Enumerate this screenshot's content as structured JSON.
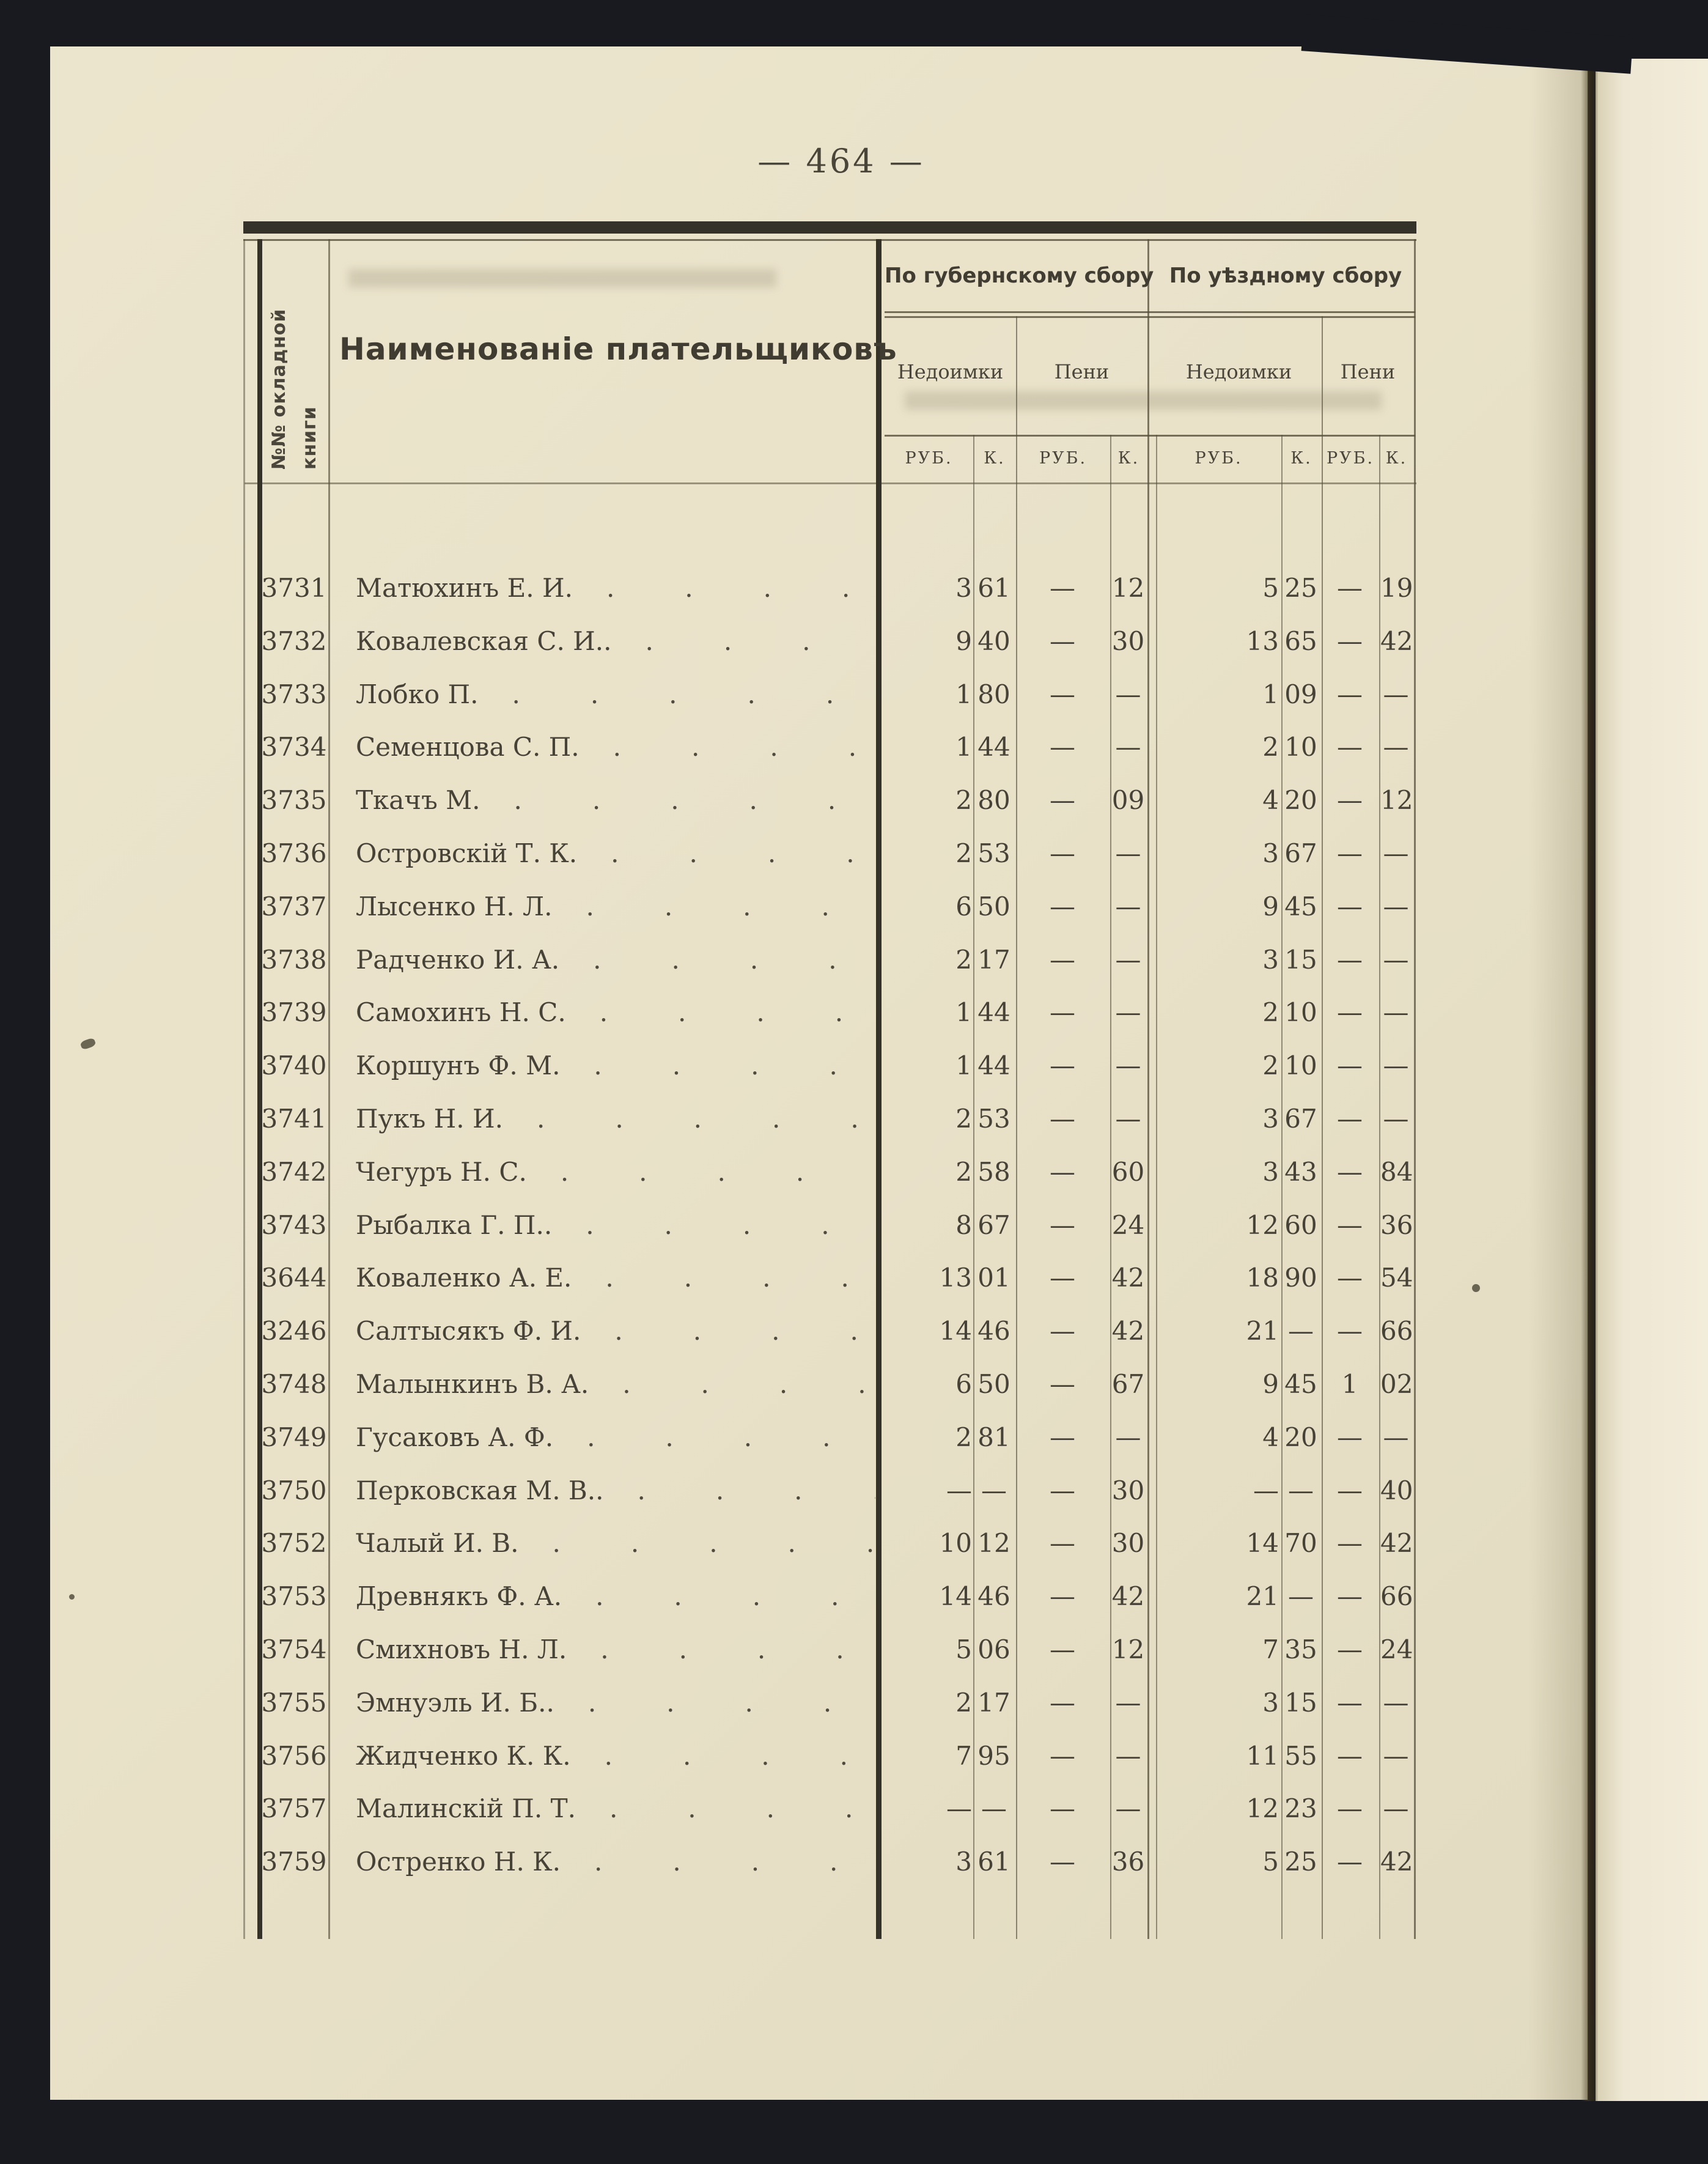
{
  "page": {
    "number": "— 464 —"
  },
  "table": {
    "headers": {
      "row_num_line1": "№№ окладной",
      "row_num_line2": "книги",
      "payer": "Наименованіе  плательщиковъ",
      "group_gub": "По губернскому сбору",
      "group_uezd": "По уѣздному сбору",
      "arrears": "Недоимки",
      "penalties": "Пени",
      "rub": "РУБ.",
      "kop": "К."
    },
    "leader_dots": "............",
    "rows": [
      {
        "num": "3731",
        "name": "Матюхинъ Е. И.",
        "values": [
          "3",
          "61",
          "—",
          "12",
          "5",
          "25",
          "—",
          "19"
        ]
      },
      {
        "num": "3732",
        "name": "Ковалевская С. И..",
        "values": [
          "9",
          "40",
          "—",
          "30",
          "13",
          "65",
          "—",
          "42"
        ]
      },
      {
        "num": "3733",
        "name": "Лобко П.",
        "values": [
          "1",
          "80",
          "—",
          "—",
          "1",
          "09",
          "—",
          "—"
        ]
      },
      {
        "num": "3734",
        "name": "Семенцова С. П.",
        "values": [
          "1",
          "44",
          "—",
          "—",
          "2",
          "10",
          "—",
          "—"
        ]
      },
      {
        "num": "3735",
        "name": "Ткачъ М.",
        "values": [
          "2",
          "80",
          "—",
          "09",
          "4",
          "20",
          "—",
          "12"
        ]
      },
      {
        "num": "3736",
        "name": "Островскій Т. К.",
        "values": [
          "2",
          "53",
          "—",
          "—",
          "3",
          "67",
          "—",
          "—"
        ]
      },
      {
        "num": "3737",
        "name": "Лысенко Н. Л.",
        "values": [
          "6",
          "50",
          "—",
          "—",
          "9",
          "45",
          "—",
          "—"
        ]
      },
      {
        "num": "3738",
        "name": "Радченко И. А.",
        "values": [
          "2",
          "17",
          "—",
          "—",
          "3",
          "15",
          "—",
          "—"
        ]
      },
      {
        "num": "3739",
        "name": "Самохинъ Н. С.",
        "values": [
          "1",
          "44",
          "—",
          "—",
          "2",
          "10",
          "—",
          "—"
        ]
      },
      {
        "num": "3740",
        "name": "Коршунъ Ф. М.",
        "values": [
          "1",
          "44",
          "—",
          "—",
          "2",
          "10",
          "—",
          "—"
        ]
      },
      {
        "num": "3741",
        "name": "Пукъ Н. И.",
        "values": [
          "2",
          "53",
          "—",
          "—",
          "3",
          "67",
          "—",
          "—"
        ]
      },
      {
        "num": "3742",
        "name": "Чегуръ Н. С.",
        "values": [
          "2",
          "58",
          "—",
          "60",
          "3",
          "43",
          "—",
          "84"
        ]
      },
      {
        "num": "3743",
        "name": "Рыбалка Г. П..",
        "values": [
          "8",
          "67",
          "—",
          "24",
          "12",
          "60",
          "—",
          "36"
        ]
      },
      {
        "num": "3644",
        "name": "Коваленко А. Е.",
        "values": [
          "13",
          "01",
          "—",
          "42",
          "18",
          "90",
          "—",
          "54"
        ]
      },
      {
        "num": "3246",
        "name": "Салтысякъ Ф. И.",
        "values": [
          "14",
          "46",
          "—",
          "42",
          "21",
          "—",
          "—",
          "66"
        ]
      },
      {
        "num": "3748",
        "name": "Малынкинъ В. А.",
        "values": [
          "6",
          "50",
          "—",
          "67",
          "9",
          "45",
          "1",
          "02"
        ]
      },
      {
        "num": "3749",
        "name": "Гусаковъ А. Ф.",
        "values": [
          "2",
          "81",
          "—",
          "—",
          "4",
          "20",
          "—",
          "—"
        ]
      },
      {
        "num": "3750",
        "name": "Перковская М. В..",
        "values": [
          "—",
          "—",
          "—",
          "30",
          "—",
          "—",
          "—",
          "40"
        ]
      },
      {
        "num": "3752",
        "name": "Чалый И. В.",
        "values": [
          "10",
          "12",
          "—",
          "30",
          "14",
          "70",
          "—",
          "42"
        ]
      },
      {
        "num": "3753",
        "name": "Древнякъ Ф. А.",
        "values": [
          "14",
          "46",
          "—",
          "42",
          "21",
          "—",
          "—",
          "66"
        ]
      },
      {
        "num": "3754",
        "name": "Смихновъ Н. Л.",
        "values": [
          "5",
          "06",
          "—",
          "12",
          "7",
          "35",
          "—",
          "24"
        ]
      },
      {
        "num": "3755",
        "name": "Эмнуэль И. Б..",
        "values": [
          "2",
          "17",
          "—",
          "—",
          "3",
          "15",
          "—",
          "—"
        ]
      },
      {
        "num": "3756",
        "name": "Жидченко К. К.",
        "values": [
          "7",
          "95",
          "—",
          "—",
          "11",
          "55",
          "—",
          "—"
        ]
      },
      {
        "num": "3757",
        "name": "Малинскій П. Т.",
        "values": [
          "—",
          "—",
          "—",
          "—",
          "12",
          "23",
          "—",
          "—"
        ]
      },
      {
        "num": "3759",
        "name": "Остренко Н. К.",
        "values": [
          "3",
          "61",
          "—",
          "36",
          "5",
          "25",
          "—",
          "42"
        ]
      }
    ]
  }
}
